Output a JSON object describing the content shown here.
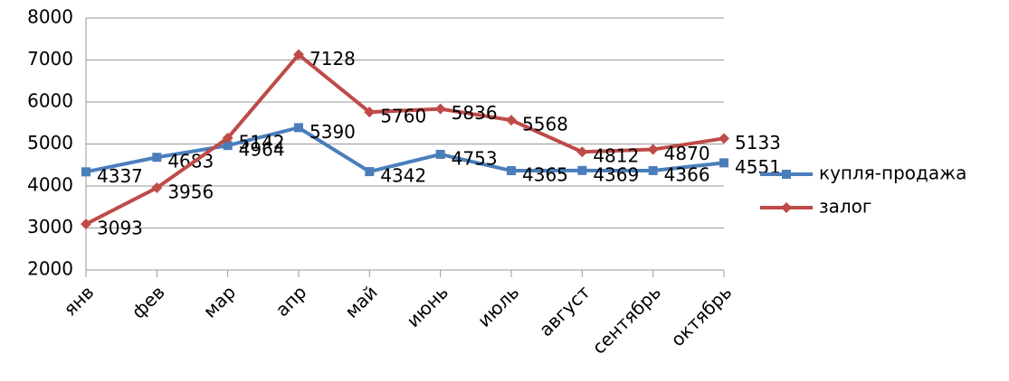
{
  "chart_data": {
    "type": "line",
    "categories": [
      "янв",
      "фев",
      "мар",
      "апр",
      "май",
      "июнь",
      "июль",
      "август",
      "сентябрь",
      "октябрь"
    ],
    "series": [
      {
        "name": "купля-продажа",
        "color": "#4a7ebb",
        "marker": "square",
        "values": [
          4337,
          4683,
          4964,
          5390,
          4342,
          4753,
          4365,
          4369,
          4366,
          4551
        ]
      },
      {
        "name": "залог",
        "color": "#be4b48",
        "marker": "diamond",
        "values": [
          3093,
          3956,
          5142,
          7128,
          5760,
          5836,
          5568,
          4812,
          4870,
          5133
        ]
      }
    ],
    "ylim": [
      2000,
      8000
    ],
    "yticks": [
      2000,
      3000,
      4000,
      5000,
      6000,
      7000,
      8000
    ],
    "grid": true,
    "legend": "right"
  }
}
